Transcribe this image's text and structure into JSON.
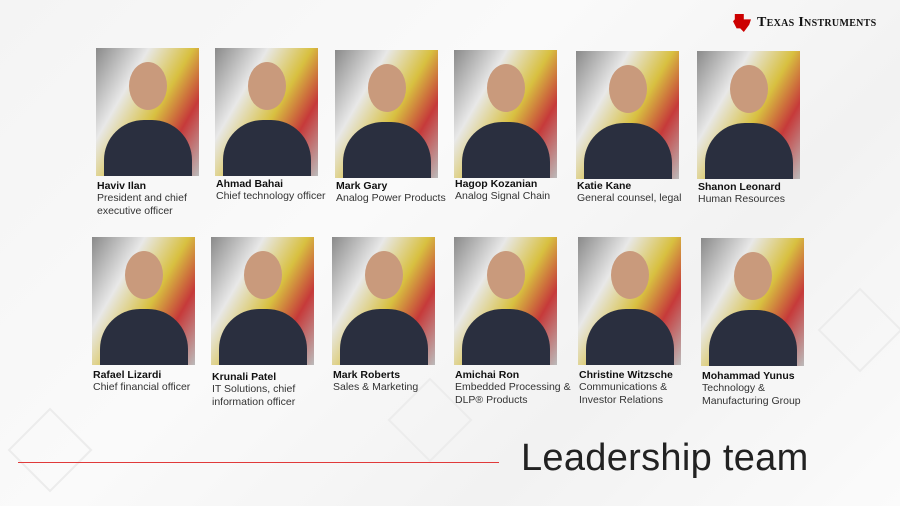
{
  "brand": {
    "name": "Texas Instruments",
    "color": "#cc0000"
  },
  "title": "Leadership team",
  "accent_line_color": "#e03a3a",
  "members": [
    {
      "name": "Haviv Ilan",
      "role": "President and chief executive  officer"
    },
    {
      "name": "Ahmad Bahai",
      "role": "Chief technology officer"
    },
    {
      "name": "Mark Gary",
      "role": "Analog Power Products"
    },
    {
      "name": "Hagop Kozanian",
      "role": "Analog Signal Chain"
    },
    {
      "name": "Katie Kane",
      "role": "General counsel, legal"
    },
    {
      "name": "Shanon Leonard",
      "role": "Human Resources"
    },
    {
      "name": "Rafael Lizardi",
      "role": "Chief financial officer"
    },
    {
      "name": "Krunali Patel",
      "role": "IT Solutions, chief information officer"
    },
    {
      "name": "Mark Roberts",
      "role": "Sales & Marketing"
    },
    {
      "name": "Amichai Ron",
      "role": "Embedded Processing & DLP® Products"
    },
    {
      "name": "Christine Witzsche",
      "role": "Communications & Investor Relations"
    },
    {
      "name": "Mohammad Yunus",
      "role": "Technology & Manufacturing Group"
    }
  ]
}
